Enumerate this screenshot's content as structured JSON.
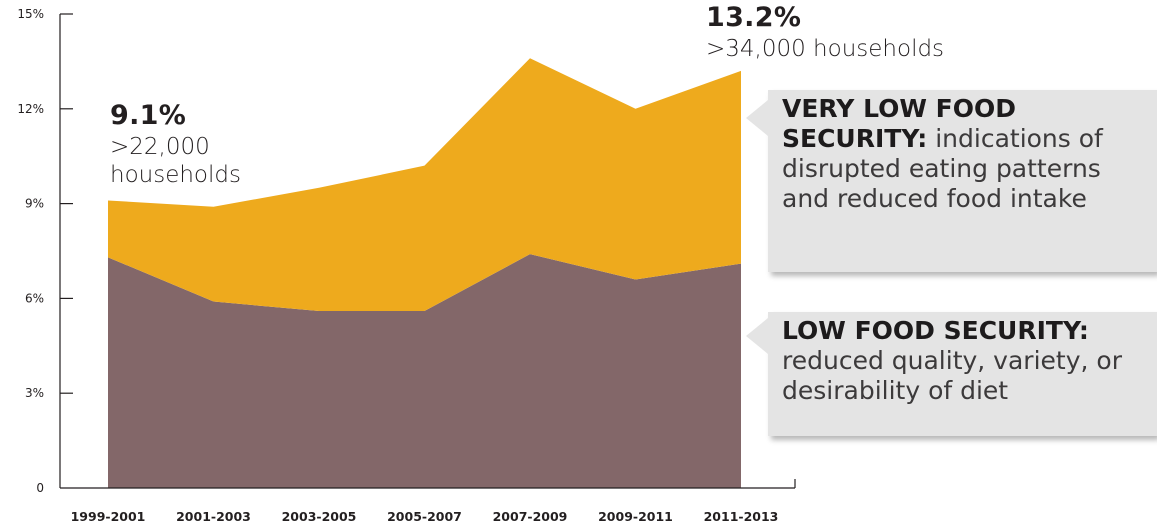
{
  "chart_data": {
    "type": "area",
    "stacked": true,
    "categories": [
      "1999-2001",
      "2001-2003",
      "2003-2005",
      "2005-2007",
      "2007-2009",
      "2009-2011",
      "2011-2013"
    ],
    "series": [
      {
        "values": [
          7.3,
          5.9,
          5.6,
          5.6,
          7.4,
          6.6,
          7.1
        ],
        "color": "#836769"
      },
      {
        "values": [
          1.8,
          3.0,
          3.9,
          4.6,
          6.2,
          5.4,
          6.1
        ],
        "color": "#eeaa1d"
      }
    ],
    "y_ticks": [
      {
        "value": 0,
        "label": "0"
      },
      {
        "value": 3,
        "label": "3%"
      },
      {
        "value": 6,
        "label": "6%"
      },
      {
        "value": 9,
        "label": "9%"
      },
      {
        "value": 12,
        "label": "12%"
      },
      {
        "value": 15,
        "label": "15%"
      }
    ],
    "ylim": [
      0,
      15
    ],
    "grid": false,
    "axis_color": "#231f20",
    "annotations": [
      {
        "value": "9.1%",
        "text": ">22,000 households"
      },
      {
        "value": "13.2%",
        "text": ">34,000 households"
      }
    ]
  },
  "callouts": {
    "very_low": {
      "head": "VERY LOW FOOD SECURITY:",
      "body": "indications of disrupted eating patterns and reduced food intake"
    },
    "low": {
      "head": "LOW FOOD SECURITY:",
      "body": "reduced quality, variety, or desirability of diet"
    }
  },
  "colors": {
    "callout_bg": "#e4e4e4"
  }
}
